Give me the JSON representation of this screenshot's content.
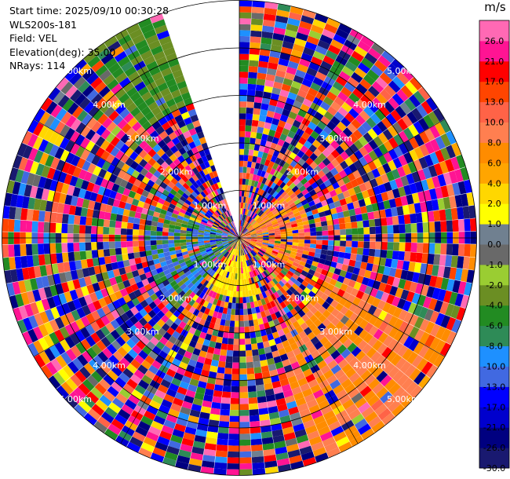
{
  "info": {
    "start_time": "Start time: 2025/09/10 00:30:28",
    "instrument": "WLS200s-181",
    "field": "Field: VEL",
    "elevation": "Elevation(deg): 35.00",
    "nrays": "NRays: 114"
  },
  "colorbar": {
    "unit": "m/s",
    "ticks": [
      "-30.0",
      "-26.0",
      "-21.0",
      "-17.0",
      "-13.0",
      "-10.0",
      "-8.0",
      "-6.0",
      "-4.0",
      "-2.0",
      "-1.0",
      "0.0",
      "1.0",
      "2.0",
      "4.0",
      "6.0",
      "8.0",
      "10.0",
      "13.0",
      "17.0",
      "21.0",
      "26.0"
    ],
    "colors": [
      "#191970",
      "#000080",
      "#0000cd",
      "#0000ff",
      "#4169e1",
      "#1e90ff",
      "#2e8b57",
      "#228b22",
      "#6b8e23",
      "#9acd32",
      "#696969",
      "#708090",
      "#ffff00",
      "#ffd700",
      "#ffa500",
      "#ff8c00",
      "#ff7f50",
      "#ff6347",
      "#ff4500",
      "#ff0000",
      "#ff1493",
      "#ff69b4"
    ]
  },
  "chart_data": {
    "type": "heatmap",
    "projection": "polar",
    "field": "VEL",
    "units": "m/s",
    "elevation_deg": 35.0,
    "n_rays": 114,
    "range_rings_km": [
      1,
      2,
      3,
      4,
      5
    ],
    "ring_labels": [
      "1.00km",
      "2.00km",
      "3.00km",
      "4.00km",
      "5.00km"
    ],
    "max_range_km": 5.0,
    "missing_sector_deg": [
      340,
      360
    ],
    "grid": true,
    "notes_regions": [
      {
        "azimuth_deg": [
          45,
          120
        ],
        "range_km": [
          0,
          1.5
        ],
        "velocity": "positive (4 to 13)"
      },
      {
        "azimuth_deg": [
          115,
          160
        ],
        "range_km": [
          2,
          5
        ],
        "velocity": "positive (6 to 10)"
      },
      {
        "azimuth_deg": [
          160,
          215
        ],
        "range_km": [
          0,
          1.2
        ],
        "velocity": "positive (1 to 4)"
      },
      {
        "azimuth_deg": [
          220,
          290
        ],
        "range_km": [
          0,
          2
        ],
        "velocity": "negative (-13 to -2)"
      },
      {
        "azimuth_deg": [
          320,
          340
        ],
        "range_km": [
          3,
          5.2
        ],
        "velocity": "negative (-6 to -2)"
      }
    ]
  }
}
